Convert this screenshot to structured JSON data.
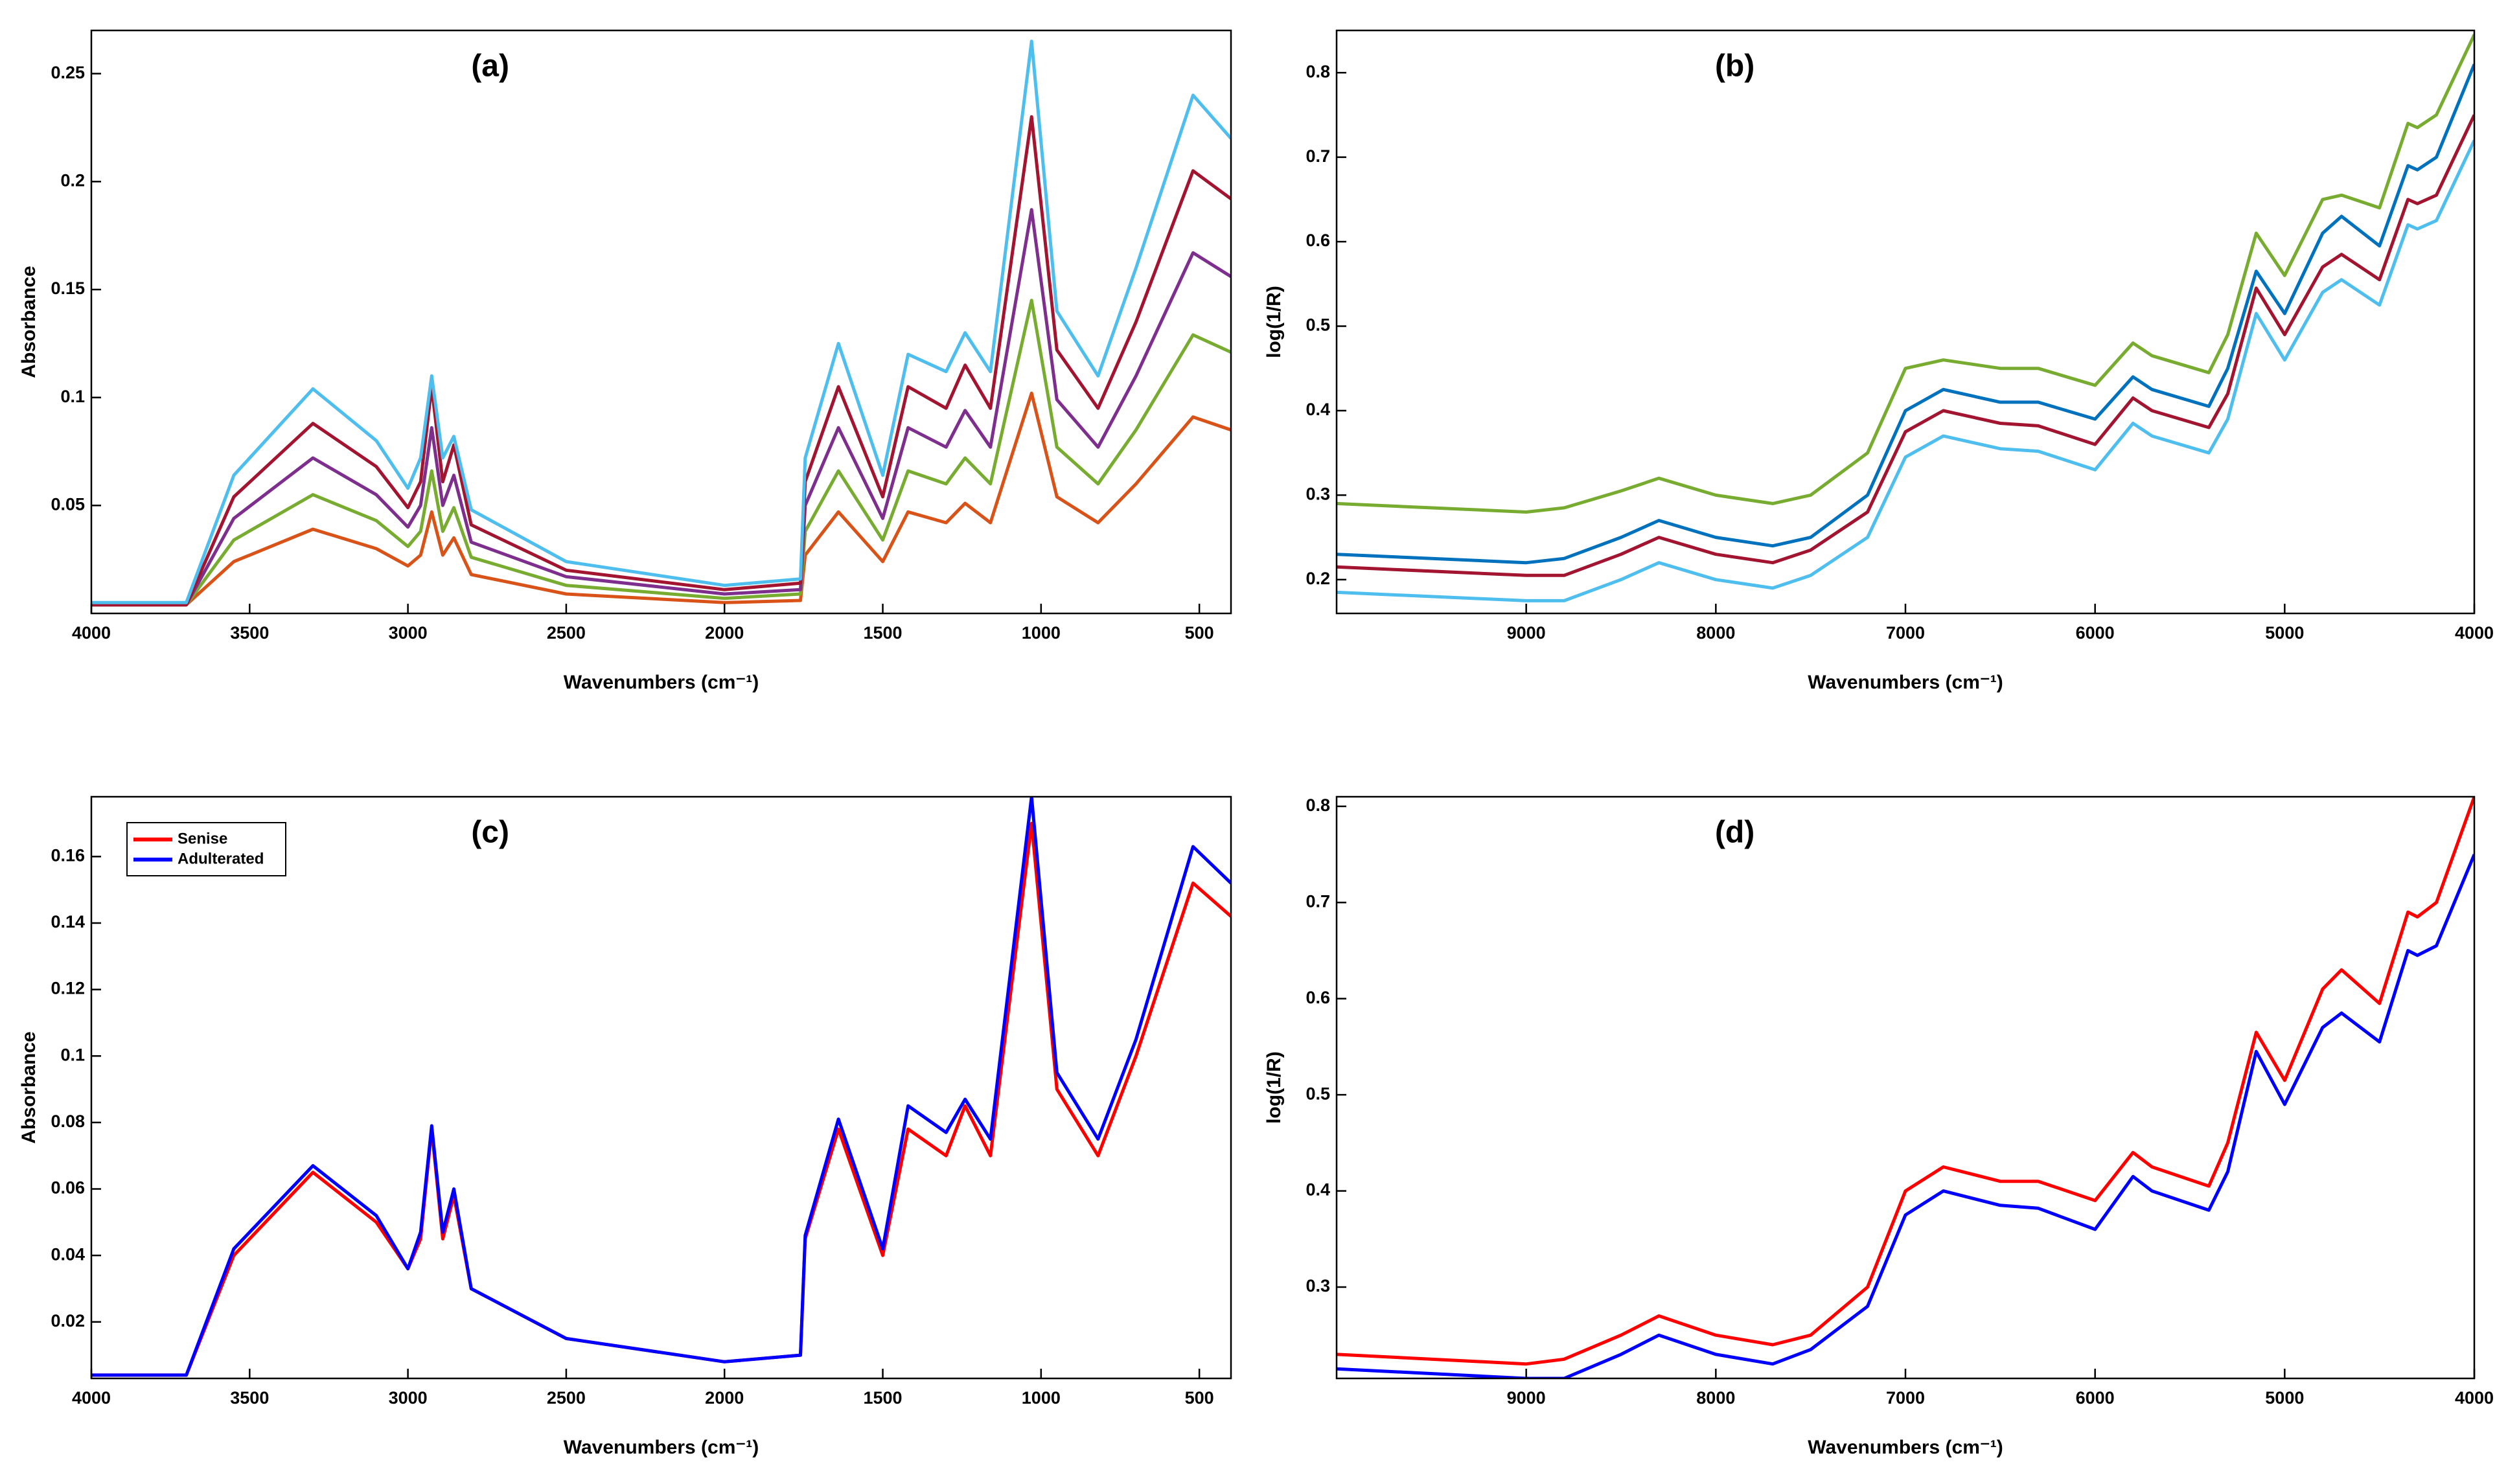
{
  "chart_data": [
    {
      "type": "line",
      "title": "(a)",
      "xlabel": "Wavenumbers (cm⁻¹)",
      "ylabel": "Absorbance",
      "xlim": [
        4000,
        400
      ],
      "xticks": [
        4000,
        3500,
        3000,
        2500,
        2000,
        1500,
        1000,
        500
      ],
      "ylim": [
        0,
        0.27
      ],
      "yticks": [
        0.05,
        0.1,
        0.15,
        0.2,
        0.25
      ],
      "x": [
        4000,
        3700,
        3550,
        3300,
        3100,
        3000,
        2960,
        2925,
        2890,
        2855,
        2800,
        2500,
        2000,
        1760,
        1745,
        1640,
        1500,
        1420,
        1300,
        1240,
        1160,
        1030,
        950,
        820,
        700,
        520,
        400
      ],
      "series": [
        {
          "color": "#D95319",
          "values": [
            0.004,
            0.004,
            0.024,
            0.039,
            0.03,
            0.022,
            0.027,
            0.047,
            0.027,
            0.035,
            0.018,
            0.009,
            0.005,
            0.006,
            0.027,
            0.047,
            0.024,
            0.047,
            0.042,
            0.051,
            0.042,
            0.102,
            0.054,
            0.042,
            0.06,
            0.091,
            0.085
          ]
        },
        {
          "color": "#77AC30",
          "values": [
            0.004,
            0.004,
            0.034,
            0.055,
            0.043,
            0.031,
            0.038,
            0.066,
            0.038,
            0.049,
            0.026,
            0.013,
            0.007,
            0.009,
            0.038,
            0.066,
            0.034,
            0.066,
            0.06,
            0.072,
            0.06,
            0.145,
            0.077,
            0.06,
            0.085,
            0.129,
            0.121
          ]
        },
        {
          "color": "#7E2F8E",
          "values": [
            0.004,
            0.004,
            0.044,
            0.072,
            0.055,
            0.04,
            0.05,
            0.086,
            0.05,
            0.064,
            0.033,
            0.017,
            0.009,
            0.011,
            0.05,
            0.086,
            0.044,
            0.086,
            0.077,
            0.094,
            0.077,
            0.187,
            0.099,
            0.077,
            0.11,
            0.167,
            0.156
          ]
        },
        {
          "color": "#A2142F",
          "values": [
            0.004,
            0.004,
            0.054,
            0.088,
            0.068,
            0.049,
            0.061,
            0.105,
            0.061,
            0.078,
            0.041,
            0.02,
            0.011,
            0.014,
            0.061,
            0.105,
            0.054,
            0.105,
            0.095,
            0.115,
            0.095,
            0.23,
            0.122,
            0.095,
            0.135,
            0.205,
            0.192
          ]
        },
        {
          "color": "#4DBEEE",
          "values": [
            0.005,
            0.005,
            0.064,
            0.104,
            0.08,
            0.058,
            0.072,
            0.11,
            0.072,
            0.082,
            0.048,
            0.024,
            0.013,
            0.016,
            0.072,
            0.125,
            0.064,
            0.12,
            0.112,
            0.13,
            0.112,
            0.265,
            0.14,
            0.11,
            0.16,
            0.24,
            0.22
          ]
        }
      ]
    },
    {
      "type": "line",
      "title": "(b)",
      "xlabel": "Wavenumbers (cm⁻¹)",
      "ylabel": "log(1/R)",
      "xlim": [
        10000,
        4000
      ],
      "xticks": [
        9000,
        8000,
        7000,
        6000,
        5000,
        4000
      ],
      "ylim": [
        0.16,
        0.85
      ],
      "yticks": [
        0.2,
        0.3,
        0.4,
        0.5,
        0.6,
        0.7,
        0.8
      ],
      "x": [
        10000,
        9000,
        8800,
        8500,
        8300,
        8000,
        7700,
        7500,
        7200,
        7000,
        6800,
        6500,
        6300,
        6000,
        5800,
        5700,
        5400,
        5300,
        5150,
        5000,
        4800,
        4700,
        4500,
        4350,
        4300,
        4200,
        4000
      ],
      "series": [
        {
          "color": "#4DBEEE",
          "values": [
            0.185,
            0.175,
            0.175,
            0.2,
            0.22,
            0.2,
            0.19,
            0.205,
            0.25,
            0.345,
            0.37,
            0.355,
            0.352,
            0.33,
            0.385,
            0.37,
            0.35,
            0.39,
            0.515,
            0.46,
            0.54,
            0.555,
            0.525,
            0.62,
            0.615,
            0.625,
            0.72
          ]
        },
        {
          "color": "#A2142F",
          "values": [
            0.215,
            0.205,
            0.205,
            0.23,
            0.25,
            0.23,
            0.22,
            0.235,
            0.28,
            0.375,
            0.4,
            0.385,
            0.382,
            0.36,
            0.415,
            0.4,
            0.38,
            0.42,
            0.545,
            0.49,
            0.57,
            0.585,
            0.555,
            0.65,
            0.645,
            0.655,
            0.75
          ]
        },
        {
          "color": "#0072BD",
          "values": [
            0.23,
            0.22,
            0.225,
            0.25,
            0.27,
            0.25,
            0.24,
            0.25,
            0.3,
            0.4,
            0.425,
            0.41,
            0.41,
            0.39,
            0.44,
            0.425,
            0.405,
            0.45,
            0.565,
            0.515,
            0.61,
            0.63,
            0.595,
            0.69,
            0.685,
            0.7,
            0.81
          ]
        },
        {
          "color": "#77AC30",
          "values": [
            0.29,
            0.28,
            0.285,
            0.305,
            0.32,
            0.3,
            0.29,
            0.3,
            0.35,
            0.45,
            0.46,
            0.45,
            0.45,
            0.43,
            0.48,
            0.465,
            0.445,
            0.49,
            0.61,
            0.56,
            0.65,
            0.655,
            0.64,
            0.74,
            0.735,
            0.75,
            0.845
          ]
        }
      ]
    },
    {
      "type": "line",
      "title": "(c)",
      "xlabel": "Wavenumbers (cm⁻¹)",
      "ylabel": "Absorbance",
      "legend": "upper left",
      "xlim": [
        4000,
        400
      ],
      "xticks": [
        4000,
        3500,
        3000,
        2500,
        2000,
        1500,
        1000,
        500
      ],
      "ylim": [
        0.003,
        0.178
      ],
      "yticks": [
        0.02,
        0.04,
        0.06,
        0.08,
        0.1,
        0.12,
        0.14,
        0.16
      ],
      "x": [
        4000,
        3700,
        3550,
        3300,
        3100,
        3000,
        2960,
        2925,
        2890,
        2855,
        2800,
        2500,
        2000,
        1760,
        1745,
        1640,
        1500,
        1420,
        1300,
        1240,
        1160,
        1030,
        950,
        820,
        700,
        520,
        400
      ],
      "series": [
        {
          "name": "Senise",
          "color": "#ff0000",
          "values": [
            0.004,
            0.004,
            0.04,
            0.065,
            0.05,
            0.036,
            0.045,
            0.078,
            0.045,
            0.058,
            0.03,
            0.015,
            0.008,
            0.01,
            0.045,
            0.078,
            0.04,
            0.078,
            0.07,
            0.085,
            0.07,
            0.17,
            0.09,
            0.07,
            0.1,
            0.152,
            0.142
          ]
        },
        {
          "name": "Adulterated",
          "color": "#0000ff",
          "values": [
            0.004,
            0.004,
            0.042,
            0.067,
            0.052,
            0.036,
            0.047,
            0.079,
            0.047,
            0.06,
            0.03,
            0.015,
            0.008,
            0.01,
            0.046,
            0.081,
            0.042,
            0.085,
            0.077,
            0.087,
            0.075,
            0.178,
            0.095,
            0.075,
            0.105,
            0.163,
            0.152
          ]
        }
      ]
    },
    {
      "type": "line",
      "title": "(d)",
      "xlabel": "Wavenumbers (cm⁻¹)",
      "ylabel": "log(1/R)",
      "xlim": [
        10000,
        4000
      ],
      "xticks": [
        9000,
        8000,
        7000,
        6000,
        5000,
        4000
      ],
      "ylim": [
        0.205,
        0.81
      ],
      "yticks": [
        0.3,
        0.4,
        0.5,
        0.6,
        0.7,
        0.8
      ],
      "x": [
        10000,
        9000,
        8800,
        8500,
        8300,
        8000,
        7700,
        7500,
        7200,
        7000,
        6800,
        6500,
        6300,
        6000,
        5800,
        5700,
        5400,
        5300,
        5150,
        5000,
        4800,
        4700,
        4500,
        4350,
        4300,
        4200,
        4000
      ],
      "series": [
        {
          "color": "#ff0000",
          "values": [
            0.23,
            0.22,
            0.225,
            0.25,
            0.27,
            0.25,
            0.24,
            0.25,
            0.3,
            0.4,
            0.425,
            0.41,
            0.41,
            0.39,
            0.44,
            0.425,
            0.405,
            0.45,
            0.565,
            0.515,
            0.61,
            0.63,
            0.595,
            0.69,
            0.685,
            0.7,
            0.81
          ]
        },
        {
          "color": "#0000ff",
          "values": [
            0.215,
            0.205,
            0.205,
            0.23,
            0.25,
            0.23,
            0.22,
            0.235,
            0.28,
            0.375,
            0.4,
            0.385,
            0.382,
            0.36,
            0.415,
            0.4,
            0.38,
            0.42,
            0.545,
            0.49,
            0.57,
            0.585,
            0.555,
            0.65,
            0.645,
            0.655,
            0.75
          ]
        }
      ]
    }
  ]
}
